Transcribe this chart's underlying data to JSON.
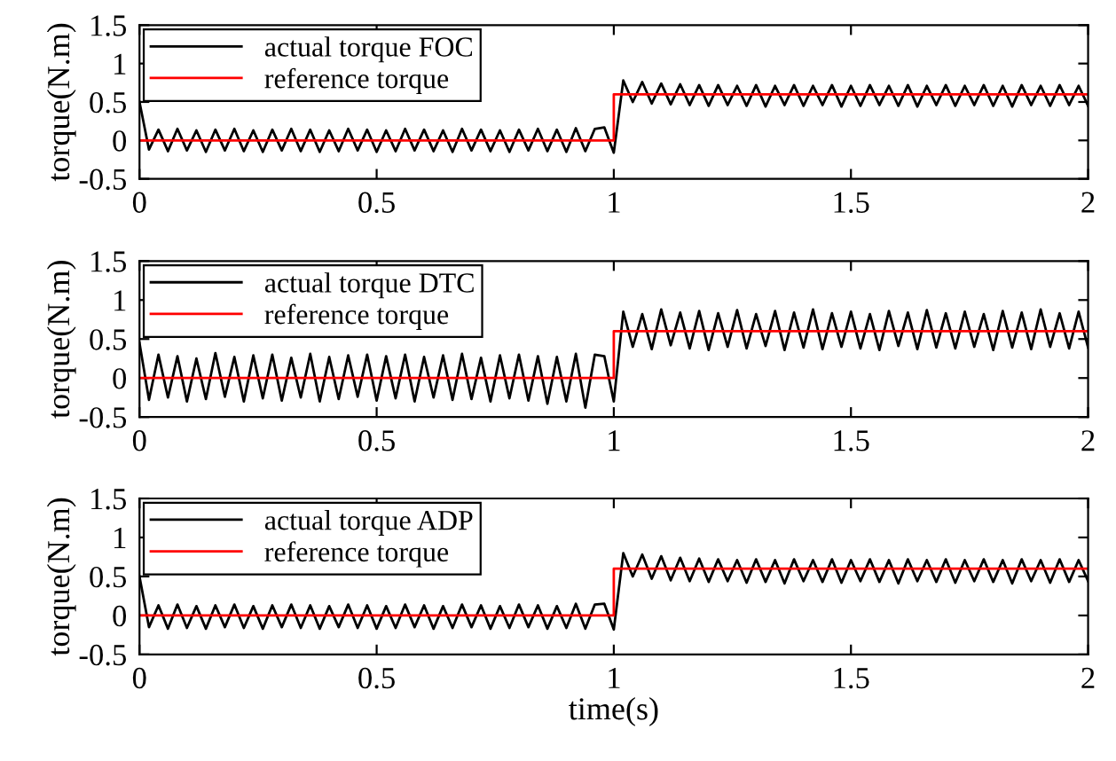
{
  "chart_data": [
    {
      "type": "line",
      "xlim": [
        0,
        2
      ],
      "ylim": [
        -0.5,
        1.5
      ],
      "xticks": [
        0,
        0.5,
        1,
        1.5,
        2
      ],
      "yticks": [
        -0.5,
        0,
        0.5,
        1,
        1.5
      ],
      "ylabel": "torque(N.m)",
      "legend": "top left",
      "grid": false,
      "x": [
        0,
        0.02,
        0.04,
        0.06,
        0.08,
        0.1,
        0.12,
        0.14,
        0.16,
        0.18,
        0.2,
        0.22,
        0.24,
        0.26,
        0.28,
        0.3,
        0.32,
        0.34,
        0.36,
        0.38,
        0.4,
        0.42,
        0.44,
        0.46,
        0.48,
        0.5,
        0.52,
        0.54,
        0.56,
        0.58,
        0.6,
        0.62,
        0.64,
        0.66,
        0.68,
        0.7,
        0.72,
        0.74,
        0.76,
        0.78,
        0.8,
        0.82,
        0.84,
        0.86,
        0.88,
        0.9,
        0.92,
        0.94,
        0.96,
        0.98,
        1,
        1.02,
        1.04,
        1.06,
        1.08,
        1.1,
        1.12,
        1.14,
        1.16,
        1.18,
        1.2,
        1.22,
        1.24,
        1.26,
        1.28,
        1.3,
        1.32,
        1.34,
        1.36,
        1.38,
        1.4,
        1.42,
        1.44,
        1.46,
        1.48,
        1.5,
        1.52,
        1.54,
        1.56,
        1.58,
        1.6,
        1.62,
        1.64,
        1.66,
        1.68,
        1.7,
        1.72,
        1.74,
        1.76,
        1.78,
        1.8,
        1.82,
        1.84,
        1.86,
        1.88,
        1.9,
        1.92,
        1.94,
        1.96,
        1.98,
        2
      ],
      "series": [
        {
          "name": "actual torque FOC",
          "color": "#000000",
          "values": [
            0.5,
            -0.12,
            0.14,
            -0.14,
            0.15,
            -0.13,
            0.13,
            -0.15,
            0.14,
            -0.13,
            0.15,
            -0.14,
            0.13,
            -0.15,
            0.14,
            -0.13,
            0.15,
            -0.14,
            0.14,
            -0.15,
            0.13,
            -0.14,
            0.15,
            -0.13,
            0.14,
            -0.15,
            0.13,
            -0.14,
            0.15,
            -0.13,
            0.14,
            -0.14,
            0.13,
            -0.15,
            0.15,
            -0.13,
            0.14,
            -0.14,
            0.13,
            -0.15,
            0.14,
            -0.13,
            0.15,
            -0.14,
            0.14,
            -0.15,
            0.16,
            -0.14,
            0.15,
            0.17,
            -0.16,
            0.78,
            0.5,
            0.76,
            0.48,
            0.74,
            0.47,
            0.73,
            0.46,
            0.72,
            0.45,
            0.72,
            0.46,
            0.71,
            0.45,
            0.72,
            0.44,
            0.71,
            0.46,
            0.72,
            0.45,
            0.71,
            0.46,
            0.72,
            0.44,
            0.71,
            0.45,
            0.72,
            0.46,
            0.71,
            0.45,
            0.72,
            0.44,
            0.71,
            0.46,
            0.72,
            0.45,
            0.71,
            0.46,
            0.72,
            0.45,
            0.71,
            0.44,
            0.72,
            0.46,
            0.71,
            0.45,
            0.72,
            0.46,
            0.71,
            0.45
          ]
        },
        {
          "name": "reference torque",
          "color": "#ff0000",
          "x": [
            0,
            1,
            1,
            2
          ],
          "values": [
            0,
            0,
            0.6,
            0.6
          ]
        }
      ]
    },
    {
      "type": "line",
      "xlim": [
        0,
        2
      ],
      "ylim": [
        -0.5,
        1.5
      ],
      "xticks": [
        0,
        0.5,
        1,
        1.5,
        2
      ],
      "yticks": [
        -0.5,
        0,
        0.5,
        1,
        1.5
      ],
      "ylabel": "torque(N.m)",
      "legend": "top left",
      "grid": false,
      "x": [
        0,
        0.02,
        0.04,
        0.06,
        0.08,
        0.1,
        0.12,
        0.14,
        0.16,
        0.18,
        0.2,
        0.22,
        0.24,
        0.26,
        0.28,
        0.3,
        0.32,
        0.34,
        0.36,
        0.38,
        0.4,
        0.42,
        0.44,
        0.46,
        0.48,
        0.5,
        0.52,
        0.54,
        0.56,
        0.58,
        0.6,
        0.62,
        0.64,
        0.66,
        0.68,
        0.7,
        0.72,
        0.74,
        0.76,
        0.78,
        0.8,
        0.82,
        0.84,
        0.86,
        0.88,
        0.9,
        0.92,
        0.94,
        0.96,
        0.98,
        1,
        1.02,
        1.04,
        1.06,
        1.08,
        1.1,
        1.12,
        1.14,
        1.16,
        1.18,
        1.2,
        1.22,
        1.24,
        1.26,
        1.28,
        1.3,
        1.32,
        1.34,
        1.36,
        1.38,
        1.4,
        1.42,
        1.44,
        1.46,
        1.48,
        1.5,
        1.52,
        1.54,
        1.56,
        1.58,
        1.6,
        1.62,
        1.64,
        1.66,
        1.68,
        1.7,
        1.72,
        1.74,
        1.76,
        1.78,
        1.8,
        1.82,
        1.84,
        1.86,
        1.88,
        1.9,
        1.92,
        1.94,
        1.96,
        1.98,
        2
      ],
      "series": [
        {
          "name": "actual torque DTC",
          "color": "#000000",
          "values": [
            0.45,
            -0.28,
            0.3,
            -0.25,
            0.28,
            -0.3,
            0.25,
            -0.27,
            0.32,
            -0.24,
            0.27,
            -0.3,
            0.29,
            -0.26,
            0.3,
            -0.29,
            0.26,
            -0.25,
            0.31,
            -0.3,
            0.27,
            -0.27,
            0.29,
            -0.24,
            0.3,
            -0.29,
            0.28,
            -0.26,
            0.3,
            -0.3,
            0.27,
            -0.25,
            0.29,
            -0.28,
            0.31,
            -0.27,
            0.26,
            -0.3,
            0.29,
            -0.26,
            0.3,
            -0.29,
            0.28,
            -0.33,
            0.27,
            -0.3,
            0.31,
            -0.38,
            0.3,
            0.28,
            -0.3,
            0.85,
            0.4,
            0.82,
            0.37,
            0.88,
            0.42,
            0.84,
            0.38,
            0.86,
            0.36,
            0.83,
            0.4,
            0.87,
            0.38,
            0.82,
            0.41,
            0.86,
            0.36,
            0.84,
            0.39,
            0.88,
            0.37,
            0.83,
            0.4,
            0.85,
            0.38,
            0.82,
            0.36,
            0.86,
            0.41,
            0.84,
            0.37,
            0.87,
            0.39,
            0.83,
            0.38,
            0.85,
            0.4,
            0.82,
            0.36,
            0.86,
            0.39,
            0.84,
            0.37,
            0.88,
            0.4,
            0.83,
            0.38,
            0.85,
            0.39
          ]
        },
        {
          "name": "reference torque",
          "color": "#ff0000",
          "x": [
            0,
            1,
            1,
            2
          ],
          "values": [
            0,
            0,
            0.6,
            0.6
          ]
        }
      ]
    },
    {
      "type": "line",
      "xlim": [
        0,
        2
      ],
      "ylim": [
        -0.5,
        1.5
      ],
      "xticks": [
        0,
        0.5,
        1,
        1.5,
        2
      ],
      "yticks": [
        -0.5,
        0,
        0.5,
        1,
        1.5
      ],
      "ylabel": "torque(N.m)",
      "xlabel": "time(s)",
      "legend": "top left",
      "grid": false,
      "x": [
        0,
        0.02,
        0.04,
        0.06,
        0.08,
        0.1,
        0.12,
        0.14,
        0.16,
        0.18,
        0.2,
        0.22,
        0.24,
        0.26,
        0.28,
        0.3,
        0.32,
        0.34,
        0.36,
        0.38,
        0.4,
        0.42,
        0.44,
        0.46,
        0.48,
        0.5,
        0.52,
        0.54,
        0.56,
        0.58,
        0.6,
        0.62,
        0.64,
        0.66,
        0.68,
        0.7,
        0.72,
        0.74,
        0.76,
        0.78,
        0.8,
        0.82,
        0.84,
        0.86,
        0.88,
        0.9,
        0.92,
        0.94,
        0.96,
        0.98,
        1,
        1.02,
        1.04,
        1.06,
        1.08,
        1.1,
        1.12,
        1.14,
        1.16,
        1.18,
        1.2,
        1.22,
        1.24,
        1.26,
        1.28,
        1.3,
        1.32,
        1.34,
        1.36,
        1.38,
        1.4,
        1.42,
        1.44,
        1.46,
        1.48,
        1.5,
        1.52,
        1.54,
        1.56,
        1.58,
        1.6,
        1.62,
        1.64,
        1.66,
        1.68,
        1.7,
        1.72,
        1.74,
        1.76,
        1.78,
        1.8,
        1.82,
        1.84,
        1.86,
        1.88,
        1.9,
        1.92,
        1.94,
        1.96,
        1.98,
        2
      ],
      "series": [
        {
          "name": "actual torque ADP",
          "color": "#000000",
          "values": [
            0.5,
            -0.15,
            0.13,
            -0.17,
            0.14,
            -0.16,
            0.12,
            -0.17,
            0.13,
            -0.15,
            0.14,
            -0.16,
            0.12,
            -0.17,
            0.13,
            -0.15,
            0.14,
            -0.16,
            0.13,
            -0.17,
            0.12,
            -0.15,
            0.14,
            -0.16,
            0.13,
            -0.17,
            0.12,
            -0.16,
            0.14,
            -0.15,
            0.13,
            -0.17,
            0.12,
            -0.16,
            0.14,
            -0.15,
            0.13,
            -0.17,
            0.12,
            -0.16,
            0.14,
            -0.15,
            0.13,
            -0.17,
            0.12,
            -0.16,
            0.15,
            -0.17,
            0.14,
            0.15,
            -0.18,
            0.8,
            0.5,
            0.78,
            0.47,
            0.76,
            0.45,
            0.74,
            0.44,
            0.73,
            0.43,
            0.72,
            0.44,
            0.71,
            0.42,
            0.72,
            0.43,
            0.71,
            0.41,
            0.72,
            0.44,
            0.71,
            0.43,
            0.72,
            0.42,
            0.71,
            0.44,
            0.72,
            0.43,
            0.71,
            0.41,
            0.72,
            0.44,
            0.71,
            0.43,
            0.72,
            0.42,
            0.71,
            0.44,
            0.72,
            0.43,
            0.71,
            0.41,
            0.72,
            0.44,
            0.71,
            0.42,
            0.72,
            0.43,
            0.71,
            0.44
          ]
        },
        {
          "name": "reference torque",
          "color": "#ff0000",
          "x": [
            0,
            1,
            1,
            2
          ],
          "values": [
            0,
            0,
            0.6,
            0.6
          ]
        }
      ]
    }
  ]
}
